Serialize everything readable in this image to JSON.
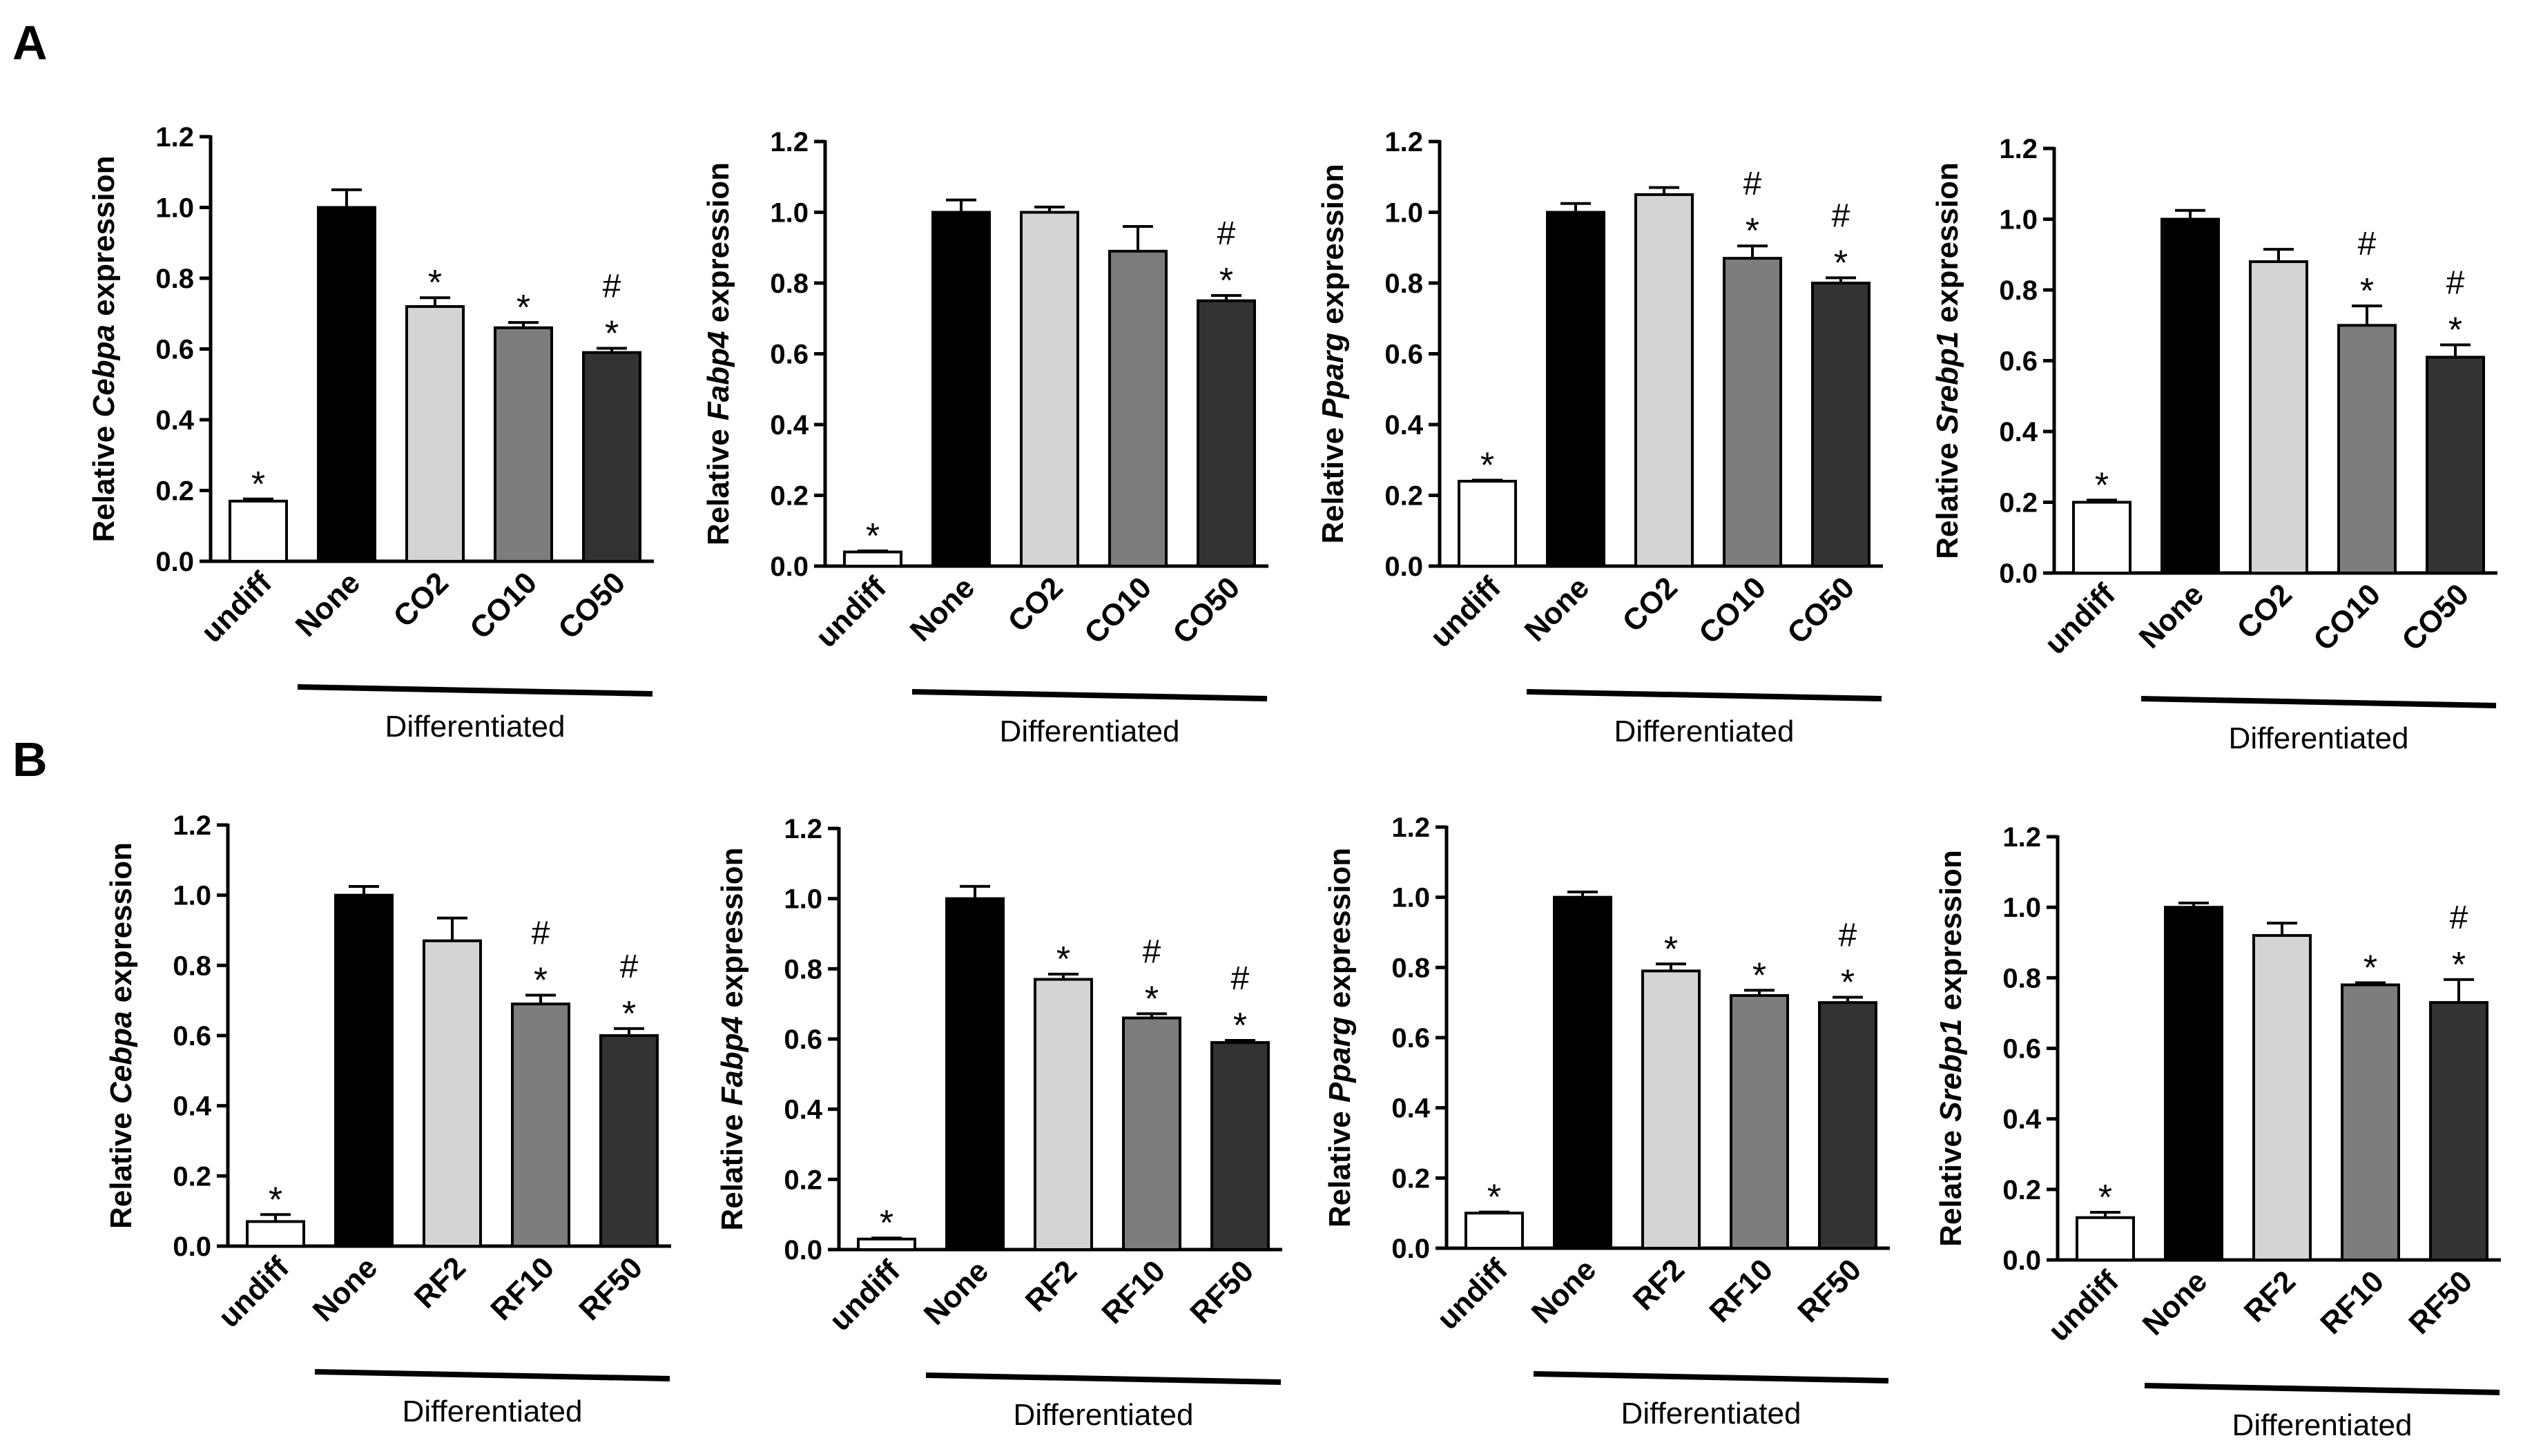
{
  "panels": [
    {
      "letter": "A",
      "charts": [
        0,
        1,
        2,
        3
      ]
    },
    {
      "letter": "B",
      "charts": [
        4,
        5,
        6,
        7
      ]
    }
  ],
  "colors": {
    "undiff": "#ffffff",
    "None": "#000000",
    "level2": "#d4d4d4",
    "level10": "#7d7d7d",
    "level50": "#333333",
    "stroke": "#000000"
  },
  "chart_data": [
    {
      "type": "bar",
      "panel": "A",
      "gene": "Cebpa",
      "ylabel_prefix": "Relative ",
      "ylabel_suffix": " expression",
      "categories": [
        "undiff",
        "None",
        "CO2",
        "CO10",
        "CO50"
      ],
      "values": [
        0.17,
        1.0,
        0.72,
        0.66,
        0.59
      ],
      "errors": [
        0.006,
        0.05,
        0.025,
        0.015,
        0.012
      ],
      "annotations": [
        [
          "*"
        ],
        [],
        [
          "*"
        ],
        [
          "*"
        ],
        [
          "#",
          "*"
        ]
      ],
      "ylim": [
        0,
        1.2
      ],
      "yticks": [
        "0.0",
        "0.2",
        "0.4",
        "0.6",
        "0.8",
        "1.0",
        "1.2"
      ],
      "group_label": "Differentiated"
    },
    {
      "type": "bar",
      "panel": "A",
      "gene": "Fabp4",
      "ylabel_prefix": "Relative ",
      "ylabel_suffix": " expression",
      "categories": [
        "undiff",
        "None",
        "CO2",
        "CO10",
        "CO50"
      ],
      "values": [
        0.04,
        1.0,
        1.0,
        0.89,
        0.75
      ],
      "errors": [
        0.003,
        0.035,
        0.015,
        0.07,
        0.015
      ],
      "annotations": [
        [
          "*"
        ],
        [],
        [],
        [],
        [
          "#",
          "*"
        ]
      ],
      "ylim": [
        0,
        1.2
      ],
      "yticks": [
        "0.0",
        "0.2",
        "0.4",
        "0.6",
        "0.8",
        "1.0",
        "1.2"
      ],
      "group_label": "Differentiated"
    },
    {
      "type": "bar",
      "panel": "A",
      "gene": "Pparg",
      "ylabel_prefix": "Relative ",
      "ylabel_suffix": "  expression",
      "categories": [
        "undiff",
        "None",
        "CO2",
        "CO10",
        "CO50"
      ],
      "values": [
        0.24,
        1.0,
        1.05,
        0.87,
        0.8
      ],
      "errors": [
        0.003,
        0.025,
        0.02,
        0.035,
        0.015
      ],
      "annotations": [
        [
          "*"
        ],
        [],
        [],
        [
          "#",
          "*"
        ],
        [
          "#",
          "*"
        ]
      ],
      "ylim": [
        0,
        1.2
      ],
      "yticks": [
        "0.0",
        "0.2",
        "0.4",
        "0.6",
        "0.8",
        "1.0",
        "1.2"
      ],
      "group_label": "Differentiated"
    },
    {
      "type": "bar",
      "panel": "A",
      "gene": "Srebp1",
      "ylabel_prefix": "Relative ",
      "ylabel_suffix": " expression",
      "categories": [
        "undiff",
        "None",
        "CO2",
        "CO10",
        "CO50"
      ],
      "values": [
        0.2,
        1.0,
        0.88,
        0.7,
        0.61
      ],
      "errors": [
        0.006,
        0.025,
        0.035,
        0.055,
        0.035
      ],
      "annotations": [
        [
          "*"
        ],
        [],
        [],
        [
          "#",
          "*"
        ],
        [
          "#",
          "*"
        ]
      ],
      "ylim": [
        0,
        1.2
      ],
      "yticks": [
        "0.0",
        "0.2",
        "0.4",
        "0.6",
        "0.8",
        "1.0",
        "1.2"
      ],
      "group_label": "Differentiated"
    },
    {
      "type": "bar",
      "panel": "B",
      "gene": "Cebpa",
      "ylabel_prefix": "Relative ",
      "ylabel_suffix": " expression",
      "categories": [
        "undiff",
        "None",
        "RF2",
        "RF10",
        "RF50"
      ],
      "values": [
        0.07,
        1.0,
        0.87,
        0.69,
        0.6
      ],
      "errors": [
        0.02,
        0.025,
        0.065,
        0.025,
        0.02
      ],
      "annotations": [
        [
          "*"
        ],
        [],
        [],
        [
          "#",
          "*"
        ],
        [
          "#",
          "*"
        ]
      ],
      "ylim": [
        0,
        1.2
      ],
      "yticks": [
        "0.0",
        "0.2",
        "0.4",
        "0.6",
        "0.8",
        "1.0",
        "1.2"
      ],
      "group_label": "Differentiated"
    },
    {
      "type": "bar",
      "panel": "B",
      "gene": "Fabp4",
      "ylabel_prefix": "Relative ",
      "ylabel_suffix": " expression",
      "categories": [
        "undiff",
        "None",
        "RF2",
        "RF10",
        "RF50"
      ],
      "values": [
        0.03,
        1.0,
        0.77,
        0.66,
        0.59
      ],
      "errors": [
        0.003,
        0.035,
        0.015,
        0.012,
        0.006
      ],
      "annotations": [
        [
          "*"
        ],
        [],
        [
          "*"
        ],
        [
          "#",
          "*"
        ],
        [
          "#",
          "*"
        ]
      ],
      "ylim": [
        0,
        1.2
      ],
      "yticks": [
        "0.0",
        "0.2",
        "0.4",
        "0.6",
        "0.8",
        "1.0",
        "1.2"
      ],
      "group_label": "Differentiated"
    },
    {
      "type": "bar",
      "panel": "B",
      "gene": "Pparg",
      "ylabel_prefix": "Relative ",
      "ylabel_suffix": "  expression",
      "categories": [
        "undiff",
        "None",
        "RF2",
        "RF10",
        "RF50"
      ],
      "values": [
        0.1,
        1.0,
        0.79,
        0.72,
        0.7
      ],
      "errors": [
        0.003,
        0.015,
        0.02,
        0.015,
        0.015
      ],
      "annotations": [
        [
          "*"
        ],
        [],
        [
          "*"
        ],
        [
          "*"
        ],
        [
          "#",
          "*"
        ]
      ],
      "ylim": [
        0,
        1.2
      ],
      "yticks": [
        "0.0",
        "0.2",
        "0.4",
        "0.6",
        "0.8",
        "1.0",
        "1.2"
      ],
      "group_label": "Differentiated"
    },
    {
      "type": "bar",
      "panel": "B",
      "gene": "Srebp1",
      "ylabel_prefix": "Relative ",
      "ylabel_suffix": " expression",
      "categories": [
        "undiff",
        "None",
        "RF2",
        "RF10",
        "RF50"
      ],
      "values": [
        0.12,
        1.0,
        0.92,
        0.78,
        0.73
      ],
      "errors": [
        0.015,
        0.012,
        0.035,
        0.006,
        0.065
      ],
      "annotations": [
        [
          "*"
        ],
        [],
        [],
        [
          "*"
        ],
        [
          "#",
          "*"
        ]
      ],
      "ylim": [
        0,
        1.2
      ],
      "yticks": [
        "0.0",
        "0.2",
        "0.4",
        "0.6",
        "0.8",
        "1.0",
        "1.2"
      ],
      "group_label": "Differentiated"
    }
  ]
}
